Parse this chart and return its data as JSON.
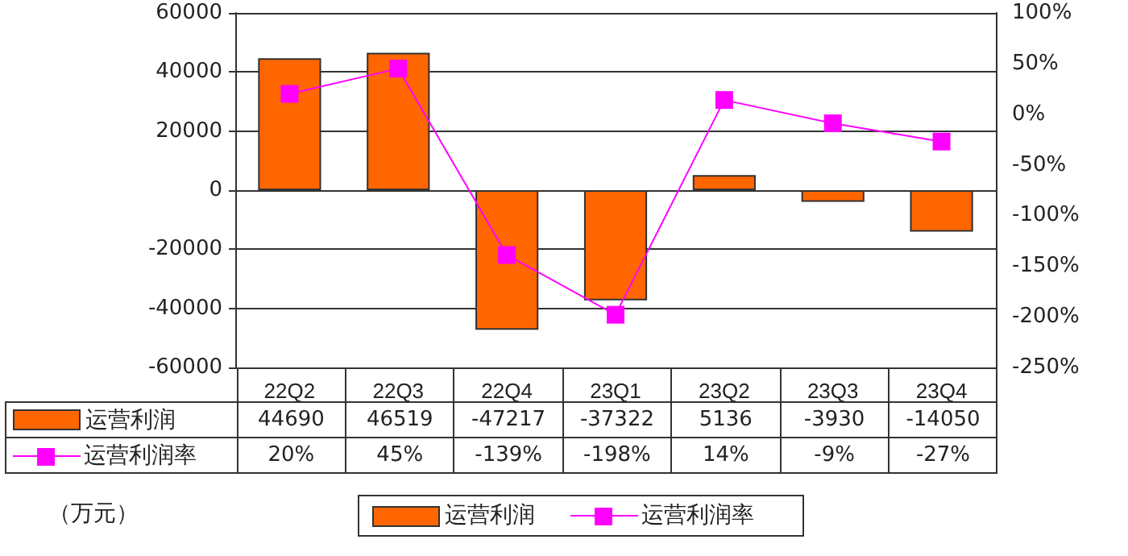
{
  "chart_data": {
    "type": "bar",
    "categories": [
      "22Q2",
      "22Q3",
      "22Q4",
      "23Q1",
      "23Q2",
      "23Q3",
      "23Q4"
    ],
    "series": [
      {
        "name": "运营利润",
        "color": "#ff6600",
        "values": [
          44690,
          46519,
          -47217,
          -37322,
          5136,
          -3930,
          -14050
        ],
        "value_labels": [
          "44690",
          "46519",
          "-47217",
          "-37322",
          "5136",
          "-3930",
          "-14050"
        ]
      },
      {
        "name": "运营利润率",
        "type": "line",
        "axis": "y2",
        "color": "#ff00ff",
        "values": [
          20,
          45,
          -139,
          -198,
          14,
          -9,
          -27
        ],
        "value_labels": [
          "20%",
          "45%",
          "-139%",
          "-198%",
          "14%",
          "-9%",
          "-27%"
        ]
      }
    ],
    "ylim": [
      -60000,
      60000
    ],
    "yticks": [
      -60000,
      -40000,
      -20000,
      0,
      20000,
      40000,
      60000
    ],
    "y2lim": [
      -250,
      100
    ],
    "y2ticks": [
      {
        "value": -250,
        "label": "-250%"
      },
      {
        "value": -200,
        "label": "-200%"
      },
      {
        "value": -150,
        "label": "-150%"
      },
      {
        "value": -100,
        "label": "-100%"
      },
      {
        "value": -50,
        "label": "-50%"
      },
      {
        "value": 0,
        "label": "0%"
      },
      {
        "value": 50,
        "label": "50%"
      },
      {
        "value": 100,
        "label": "100%"
      }
    ],
    "annotations": [
      "（万元）"
    ],
    "grid": "y",
    "legend": "bottom",
    "marker": "square",
    "line_style": "solid"
  }
}
